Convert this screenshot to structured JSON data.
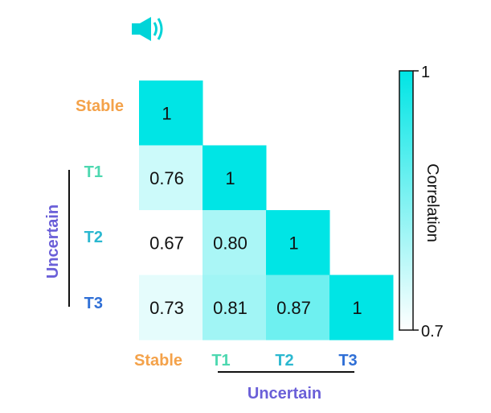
{
  "chart_data": {
    "type": "heatmap",
    "variant": "lower-triangular correlation matrix",
    "rows": [
      "Stable",
      "T1",
      "T2",
      "T3"
    ],
    "columns": [
      "Stable",
      "T1",
      "T2",
      "T3"
    ],
    "values": [
      [
        1,
        null,
        null,
        null
      ],
      [
        0.76,
        1,
        null,
        null
      ],
      [
        0.67,
        0.8,
        1,
        null
      ],
      [
        0.73,
        0.81,
        0.87,
        1
      ]
    ],
    "value_labels": [
      [
        "1",
        "",
        "",
        ""
      ],
      [
        "0.76",
        "1",
        "",
        ""
      ],
      [
        "0.67",
        "0.80",
        "1",
        ""
      ],
      [
        "0.73",
        "0.81",
        "0.87",
        "1"
      ]
    ],
    "group_label": "Uncertain",
    "group_members": [
      "T1",
      "T2",
      "T3"
    ],
    "colorbar": {
      "label": "Correlation",
      "min": 0.7,
      "max": 1,
      "min_label": "0.7",
      "max_label": "1",
      "color_min": "#ffffff",
      "color_max": "#00e5e5"
    },
    "label_colors": {
      "Stable": "#f4a24a",
      "T1": "#4dd8b0",
      "T2": "#2bb8d0",
      "T3": "#2f6fd6",
      "Uncertain": "#6a5fd8"
    },
    "icon": "speaker-icon",
    "icon_color": "#00d4d8"
  }
}
